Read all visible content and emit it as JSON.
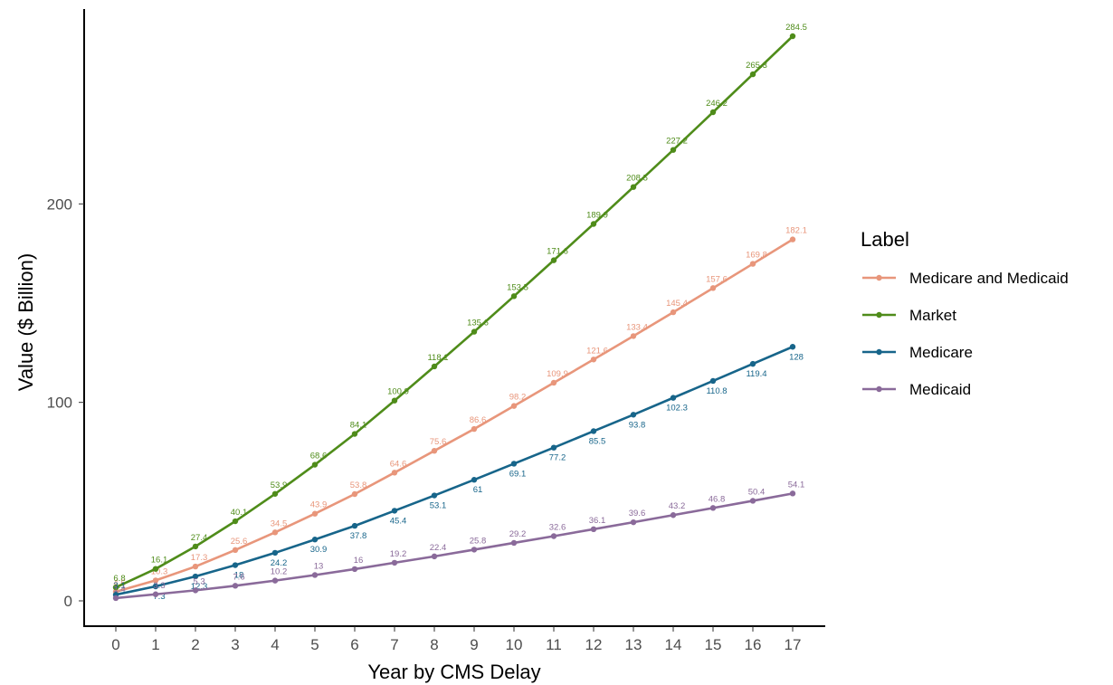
{
  "chart_data": {
    "type": "line",
    "xlabel": "Year by CMS Delay",
    "ylabel": "Value ($ Billion)",
    "x": [
      0,
      1,
      2,
      3,
      4,
      5,
      6,
      7,
      8,
      9,
      10,
      11,
      12,
      13,
      14,
      15,
      16,
      17
    ],
    "xlim": [
      0,
      17
    ],
    "ylim": [
      0,
      290
    ],
    "yticks": [
      0,
      100,
      200
    ],
    "grid": false,
    "legend": {
      "title": "Label",
      "position": "right"
    },
    "series": [
      {
        "name": "Medicare and Medicaid",
        "color": "#E8967B",
        "values": [
          4.6,
          10.3,
          17.3,
          25.6,
          34.5,
          43.9,
          53.8,
          64.6,
          75.6,
          86.6,
          98.2,
          109.9,
          121.6,
          133.4,
          145.4,
          157.6,
          169.8,
          182.1
        ],
        "labels": [
          "4.6",
          "10.3",
          "17.3",
          "25.6",
          "34.5",
          "43.9",
          "53.8",
          "64.6",
          "75.6",
          "86.6",
          "98.2",
          "109.9",
          "121.6",
          "133.4",
          "145.4",
          "157.6",
          "169.8",
          "182.1"
        ]
      },
      {
        "name": "Market",
        "color": "#4F8C1A",
        "values": [
          6.8,
          16.1,
          27.4,
          40.1,
          53.9,
          68.6,
          84.1,
          100.9,
          118.1,
          135.6,
          153.5,
          171.6,
          189.9,
          208.5,
          227.2,
          246.2,
          265.3,
          284.5
        ],
        "labels": [
          "6.8",
          "16.1",
          "27.4",
          "40.1",
          "53.9",
          "68.6",
          "84.1",
          "100.9",
          "118.1",
          "135.6",
          "153.5",
          "171.6",
          "189.9",
          "208.5",
          "227.2",
          "246.2",
          "265.3",
          "284.5"
        ]
      },
      {
        "name": "Medicare",
        "color": "#17658A",
        "values": [
          3.1,
          7.3,
          12.3,
          18,
          24.2,
          30.9,
          37.8,
          45.4,
          53.1,
          61,
          69.1,
          77.2,
          85.5,
          93.8,
          102.3,
          110.8,
          119.4,
          128
        ],
        "labels": [
          "3.1",
          "7.3",
          "12.3",
          "18",
          "24.2",
          "30.9",
          "37.8",
          "45.4",
          "53.1",
          "61",
          "69.1",
          "77.2",
          "85.5",
          "93.8",
          "102.3",
          "110.8",
          "119.4",
          "128"
        ]
      },
      {
        "name": "Medicaid",
        "color": "#8A6A9A",
        "values": [
          1.4,
          3.3,
          5.3,
          7.6,
          10.2,
          13,
          16,
          19.2,
          22.4,
          25.8,
          29.2,
          32.6,
          36.1,
          39.6,
          43.2,
          46.8,
          50.4,
          54.1
        ],
        "labels": [
          "1.4",
          "3.3",
          "5.3",
          "7.6",
          "10.2",
          "13",
          "16",
          "19.2",
          "22.4",
          "25.8",
          "29.2",
          "32.6",
          "36.1",
          "39.6",
          "43.2",
          "46.8",
          "50.4",
          "54.1"
        ]
      }
    ]
  }
}
